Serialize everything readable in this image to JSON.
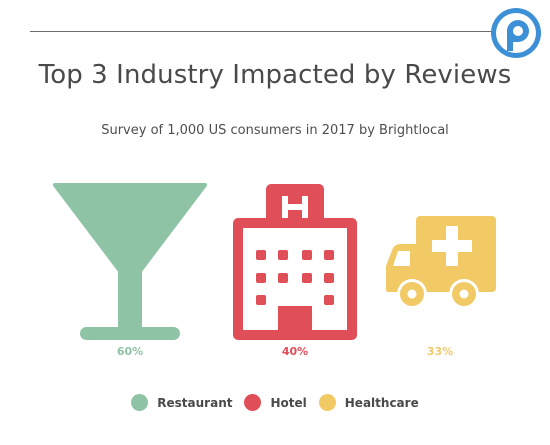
{
  "colors": {
    "restaurant": "#8ec4a5",
    "hotel": "#e04f57",
    "healthcare": "#f1ca65",
    "logo": "#3d8fd6"
  },
  "chart_data": {
    "type": "pictogram",
    "title": "Top 3 Industry Impacted by Reviews",
    "subtitle": "Survey of 1,000 US consumers in 2017 by Brightlocal",
    "legend_position": "bottom",
    "series": [
      {
        "name": "Restaurant",
        "value": 60,
        "label": "60%",
        "icon": "cocktail-glass-icon"
      },
      {
        "name": "Hotel",
        "value": 40,
        "label": "40%",
        "icon": "hotel-building-icon"
      },
      {
        "name": "Healthcare",
        "value": 33,
        "label": "33%",
        "icon": "ambulance-icon"
      }
    ]
  }
}
